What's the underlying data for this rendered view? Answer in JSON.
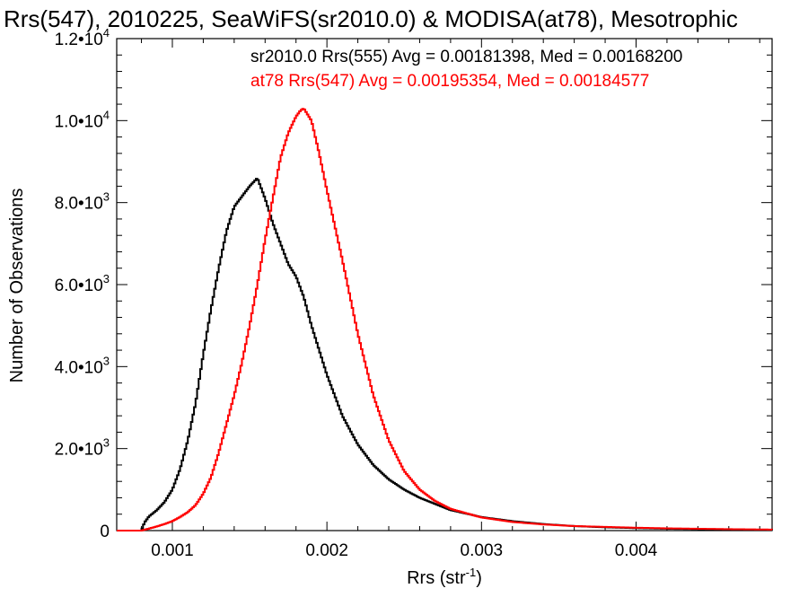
{
  "chart_data": {
    "type": "line",
    "title": "Rrs(547), 2010225, SeaWiFS(sr2010.0) & MODISA(at78), Mesotrophic",
    "xlabel": "Rrs (str",
    "xlabel_sup": "-1",
    "xlabel_close": ")",
    "ylabel": "Number of Observations",
    "xlim": [
      0.00064,
      0.00488
    ],
    "ylim": [
      0,
      12000
    ],
    "x_ticks": [
      {
        "value": 0.001,
        "label": "0.001"
      },
      {
        "value": 0.002,
        "label": "0.002"
      },
      {
        "value": 0.003,
        "label": "0.003"
      },
      {
        "value": 0.004,
        "label": "0.004"
      }
    ],
    "y_ticks": [
      {
        "value": 0,
        "label": "0",
        "exp": ""
      },
      {
        "value": 2000,
        "label": "2.0•10",
        "exp": "3"
      },
      {
        "value": 4000,
        "label": "4.0•10",
        "exp": "3"
      },
      {
        "value": 6000,
        "label": "6.0•10",
        "exp": "3"
      },
      {
        "value": 8000,
        "label": "8.0•10",
        "exp": "3"
      },
      {
        "value": 10000,
        "label": "1.0•10",
        "exp": "4"
      },
      {
        "value": 12000,
        "label": "1.2•10",
        "exp": "4"
      }
    ],
    "grid": false,
    "annotations": [
      {
        "text": "sr2010.0 Rrs(555) Avg = 0.00181398, Med = 0.00168200",
        "color": "#000000"
      },
      {
        "text": "at78 Rrs(547) Avg = 0.00195354, Med = 0.00184577",
        "color": "#ff0000"
      }
    ],
    "series": [
      {
        "color": "#000000",
        "x": [
          0.00064,
          0.0008,
          0.00082,
          0.00085,
          0.0009,
          0.00095,
          0.001,
          0.00105,
          0.0011,
          0.00115,
          0.0012,
          0.00125,
          0.0013,
          0.00135,
          0.0014,
          0.0015,
          0.00155,
          0.00158,
          0.0016,
          0.00165,
          0.0017,
          0.00175,
          0.0018,
          0.00185,
          0.0019,
          0.002,
          0.0021,
          0.0022,
          0.0023,
          0.0024,
          0.0025,
          0.0026,
          0.0027,
          0.0028,
          0.003,
          0.0032,
          0.0034,
          0.0036,
          0.0038,
          0.004,
          0.0042,
          0.0044,
          0.0046,
          0.00488
        ],
        "values": [
          0,
          0,
          200,
          350,
          500,
          700,
          1000,
          1500,
          2200,
          3100,
          4300,
          5400,
          6400,
          7300,
          7900,
          8400,
          8600,
          8300,
          8100,
          7500,
          7000,
          6500,
          6200,
          5700,
          5000,
          3800,
          2800,
          2100,
          1600,
          1250,
          1000,
          800,
          650,
          500,
          330,
          230,
          160,
          110,
          80,
          60,
          45,
          35,
          25,
          15
        ]
      },
      {
        "color": "#ff0000",
        "x": [
          0.00064,
          0.0008,
          0.00085,
          0.0009,
          0.00095,
          0.001,
          0.00105,
          0.0011,
          0.00115,
          0.0012,
          0.00125,
          0.0013,
          0.00135,
          0.0014,
          0.00145,
          0.0015,
          0.00155,
          0.0016,
          0.00165,
          0.0017,
          0.00175,
          0.0018,
          0.00183,
          0.00185,
          0.0019,
          0.00195,
          0.002,
          0.0021,
          0.0022,
          0.0023,
          0.0024,
          0.0025,
          0.0026,
          0.0027,
          0.0028,
          0.003,
          0.0032,
          0.0034,
          0.0036,
          0.0038,
          0.004,
          0.0042,
          0.0044,
          0.0046,
          0.00488
        ],
        "values": [
          0,
          0,
          50,
          100,
          160,
          230,
          330,
          450,
          620,
          900,
          1300,
          1900,
          2600,
          3300,
          4100,
          5000,
          6000,
          7100,
          8100,
          9100,
          9700,
          10100,
          10250,
          10300,
          10000,
          9200,
          8300,
          6600,
          4800,
          3300,
          2200,
          1450,
          1000,
          720,
          530,
          320,
          210,
          150,
          110,
          90,
          70,
          55,
          45,
          35,
          25
        ]
      }
    ]
  }
}
